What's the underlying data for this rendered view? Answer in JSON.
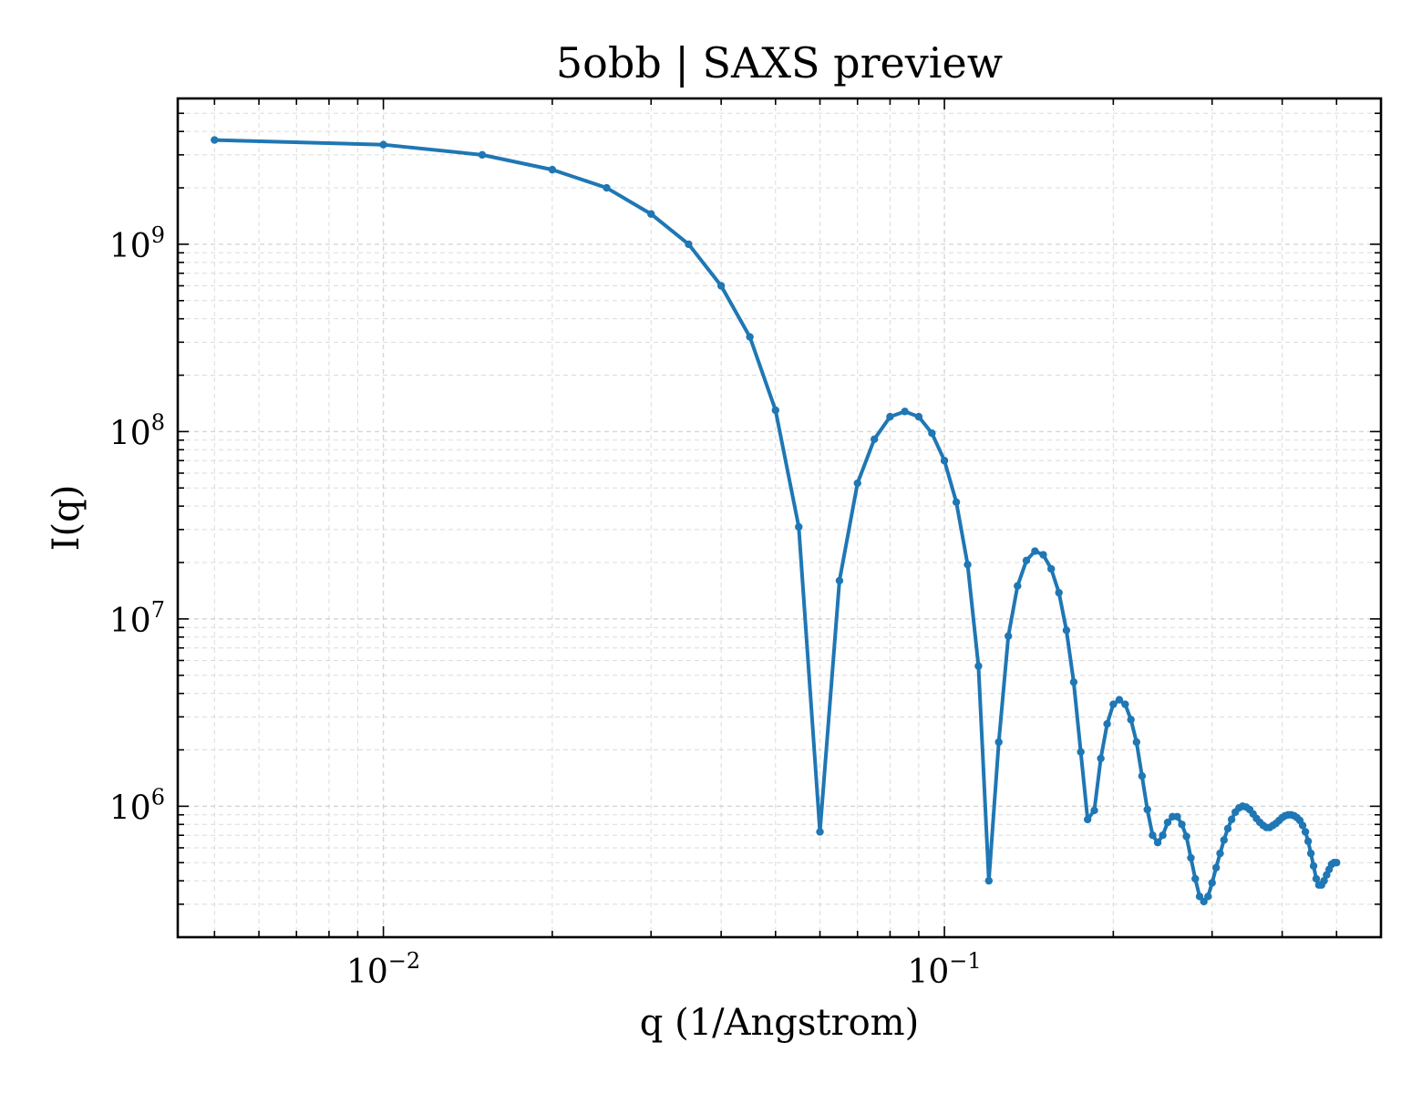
{
  "chart_data": {
    "type": "line",
    "title": "5obb | SAXS preview",
    "xlabel": "q (1/Angstrom)",
    "ylabel": "I(q)",
    "xscale": "log",
    "yscale": "log",
    "xlim": [
      0.0043,
      0.6
    ],
    "ylim": [
      200000,
      6000000000
    ],
    "grid": true,
    "legend": "none",
    "color": "#1f77b4",
    "x_ticks": [
      {
        "value": 0.01,
        "base": "10",
        "exp": "−2"
      },
      {
        "value": 0.1,
        "base": "10",
        "exp": "−1"
      }
    ],
    "y_ticks": [
      {
        "value": 1000000,
        "base": "10",
        "exp": "6"
      },
      {
        "value": 10000000,
        "base": "10",
        "exp": "7"
      },
      {
        "value": 100000000,
        "base": "10",
        "exp": "8"
      },
      {
        "value": 1000000000,
        "base": "10",
        "exp": "9"
      }
    ],
    "series": [
      {
        "x": [
          0.005,
          0.01,
          0.015,
          0.02,
          0.025,
          0.03,
          0.035,
          0.04,
          0.045,
          0.05,
          0.055,
          0.06,
          0.065,
          0.07,
          0.075,
          0.08,
          0.085,
          0.09,
          0.095,
          0.1,
          0.105,
          0.11,
          0.115,
          0.12,
          0.125,
          0.13,
          0.135,
          0.14,
          0.145,
          0.15,
          0.155,
          0.16,
          0.165,
          0.17,
          0.175,
          0.18,
          0.185,
          0.19,
          0.195,
          0.2,
          0.205,
          0.21,
          0.215,
          0.22,
          0.225,
          0.23,
          0.235,
          0.24,
          0.245,
          0.25,
          0.255,
          0.26,
          0.265,
          0.27,
          0.275,
          0.28,
          0.285,
          0.29,
          0.295,
          0.3,
          0.305,
          0.31,
          0.315,
          0.32,
          0.325,
          0.33,
          0.335,
          0.34,
          0.345,
          0.35,
          0.355,
          0.36,
          0.365,
          0.37,
          0.375,
          0.38,
          0.385,
          0.39,
          0.395,
          0.4,
          0.405,
          0.41,
          0.415,
          0.42,
          0.425,
          0.43,
          0.435,
          0.44,
          0.445,
          0.45,
          0.455,
          0.46,
          0.465,
          0.47,
          0.475,
          0.48,
          0.485,
          0.49,
          0.495,
          0.5
        ],
        "y": [
          3600000000,
          3400000000,
          3000000000,
          2500000000,
          2000000000,
          1450000000,
          1000000000,
          600000000,
          320000000,
          130000000,
          31000000,
          730000,
          16000000,
          53000000,
          91000000,
          120000000,
          128000000,
          120000000,
          98000000,
          70000000,
          42000000,
          19500000,
          5600000,
          400000,
          2200000,
          8100000,
          15000000,
          20500000,
          23000000,
          22000000,
          18500000,
          13800000,
          8700000,
          4600000,
          1950000,
          850000,
          950000,
          1800000,
          2750000,
          3500000,
          3700000,
          3500000,
          2900000,
          2200000,
          1450000,
          960000,
          700000,
          640000,
          700000,
          820000,
          880000,
          880000,
          800000,
          690000,
          530000,
          410000,
          330000,
          310000,
          330000,
          390000,
          470000,
          560000,
          660000,
          760000,
          850000,
          930000,
          980000,
          1000000,
          990000,
          960000,
          910000,
          860000,
          820000,
          790000,
          770000,
          770000,
          790000,
          810000,
          840000,
          870000,
          890000,
          900000,
          900000,
          890000,
          870000,
          840000,
          790000,
          730000,
          650000,
          560000,
          480000,
          410000,
          380000,
          380000,
          400000,
          430000,
          460000,
          490000,
          500000,
          500000
        ]
      }
    ]
  }
}
